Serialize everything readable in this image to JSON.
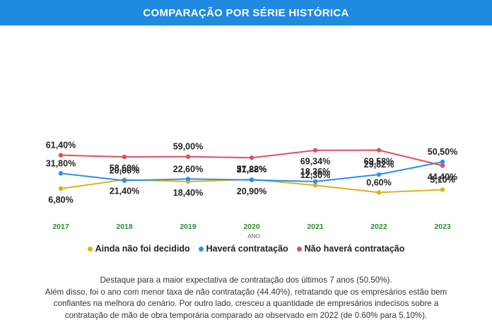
{
  "header": {
    "title": "COMPARAÇÃO POR SÉRIE HISTÓRICA"
  },
  "colors": {
    "header_bg": "#1f8ae0",
    "year_label": "#2e8b3a"
  },
  "chart_data": {
    "type": "line",
    "x": [
      "2017",
      "2018",
      "2019",
      "2020",
      "2021",
      "2022",
      "2023"
    ],
    "xlabel": "ANO",
    "ylabel": "",
    "ylim": [
      0,
      75
    ],
    "grid": false,
    "legend_position": "bottom",
    "series": [
      {
        "name": "Ainda não foi decidido",
        "color": "#d9b414",
        "values": [
          6.8,
          21.4,
          18.4,
          21.88,
          12.3,
          0.6,
          5.1
        ],
        "labels": [
          "6,80%",
          "21,40%",
          "18,40%",
          "21,88%",
          "12,30%",
          "0,60%",
          "5,10%"
        ]
      },
      {
        "name": "Haverá contratação",
        "color": "#2a8ff0",
        "values": [
          31.8,
          20.0,
          22.6,
          20.9,
          18.36,
          29.82,
          50.5
        ],
        "labels": [
          "31,80%",
          "20,00%",
          "22,60%",
          "20,90%",
          "18,36%",
          "29,82%",
          "50,50%"
        ]
      },
      {
        "name": "Não haverá contratação",
        "color": "#e0505a",
        "values": [
          61.4,
          58.6,
          59.0,
          57.22,
          69.34,
          69.58,
          44.4
        ],
        "labels": [
          "61,40%",
          "58,60%",
          "59,00%",
          "57,22%",
          "69,34%",
          "69,58%",
          "44,40%"
        ]
      }
    ]
  },
  "caption": {
    "line1": "Destaque para a maior expectativa de contratação dos últimos 7 anos (50.50%).",
    "line2": "Além disso, foi o ano com menor taxa de não contratação (44.40%), retratando que os empresários estão bem",
    "line3": "confiantes na melhora do cenário. Por outro lado, cresceu a quantidade de empresários indecisos sobre a",
    "line4": "contratação de mão de obra temporária comparado ao observado em 2022 (de 0.60% para 5.10%)."
  }
}
